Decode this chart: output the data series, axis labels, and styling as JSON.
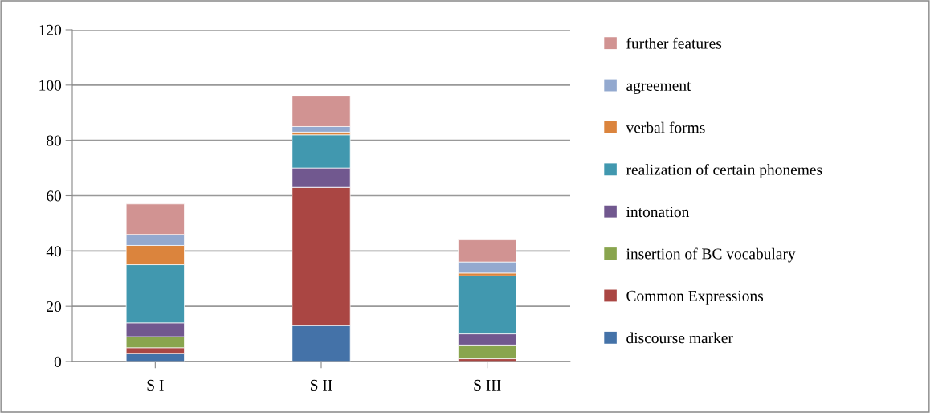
{
  "chart_data": {
    "type": "bar",
    "stacked": true,
    "categories": [
      "S I",
      "S II",
      "S III"
    ],
    "series": [
      {
        "name": "discourse marker",
        "color": "#4472a8",
        "values": [
          3,
          13,
          0
        ]
      },
      {
        "name": "Common Expressions",
        "color": "#aa4643",
        "values": [
          2,
          50,
          1
        ]
      },
      {
        "name": "insertion of BC vocabulary",
        "color": "#89a54e",
        "values": [
          4,
          0,
          5
        ]
      },
      {
        "name": "intonation",
        "color": "#71588f",
        "values": [
          5,
          7,
          4
        ]
      },
      {
        "name": "realization of certain phonemes",
        "color": "#4198af",
        "values": [
          21,
          12,
          21
        ]
      },
      {
        "name": "verbal forms",
        "color": "#db843d",
        "values": [
          7,
          1,
          1
        ]
      },
      {
        "name": "agreement",
        "color": "#93a9cf",
        "values": [
          4,
          2,
          4
        ]
      },
      {
        "name": "further features",
        "color": "#d19392",
        "values": [
          11,
          11,
          8
        ]
      }
    ],
    "ylim": [
      0,
      120
    ],
    "yticks": [
      0,
      20,
      40,
      60,
      80,
      100,
      120
    ],
    "grid": "y",
    "legend": "right"
  }
}
